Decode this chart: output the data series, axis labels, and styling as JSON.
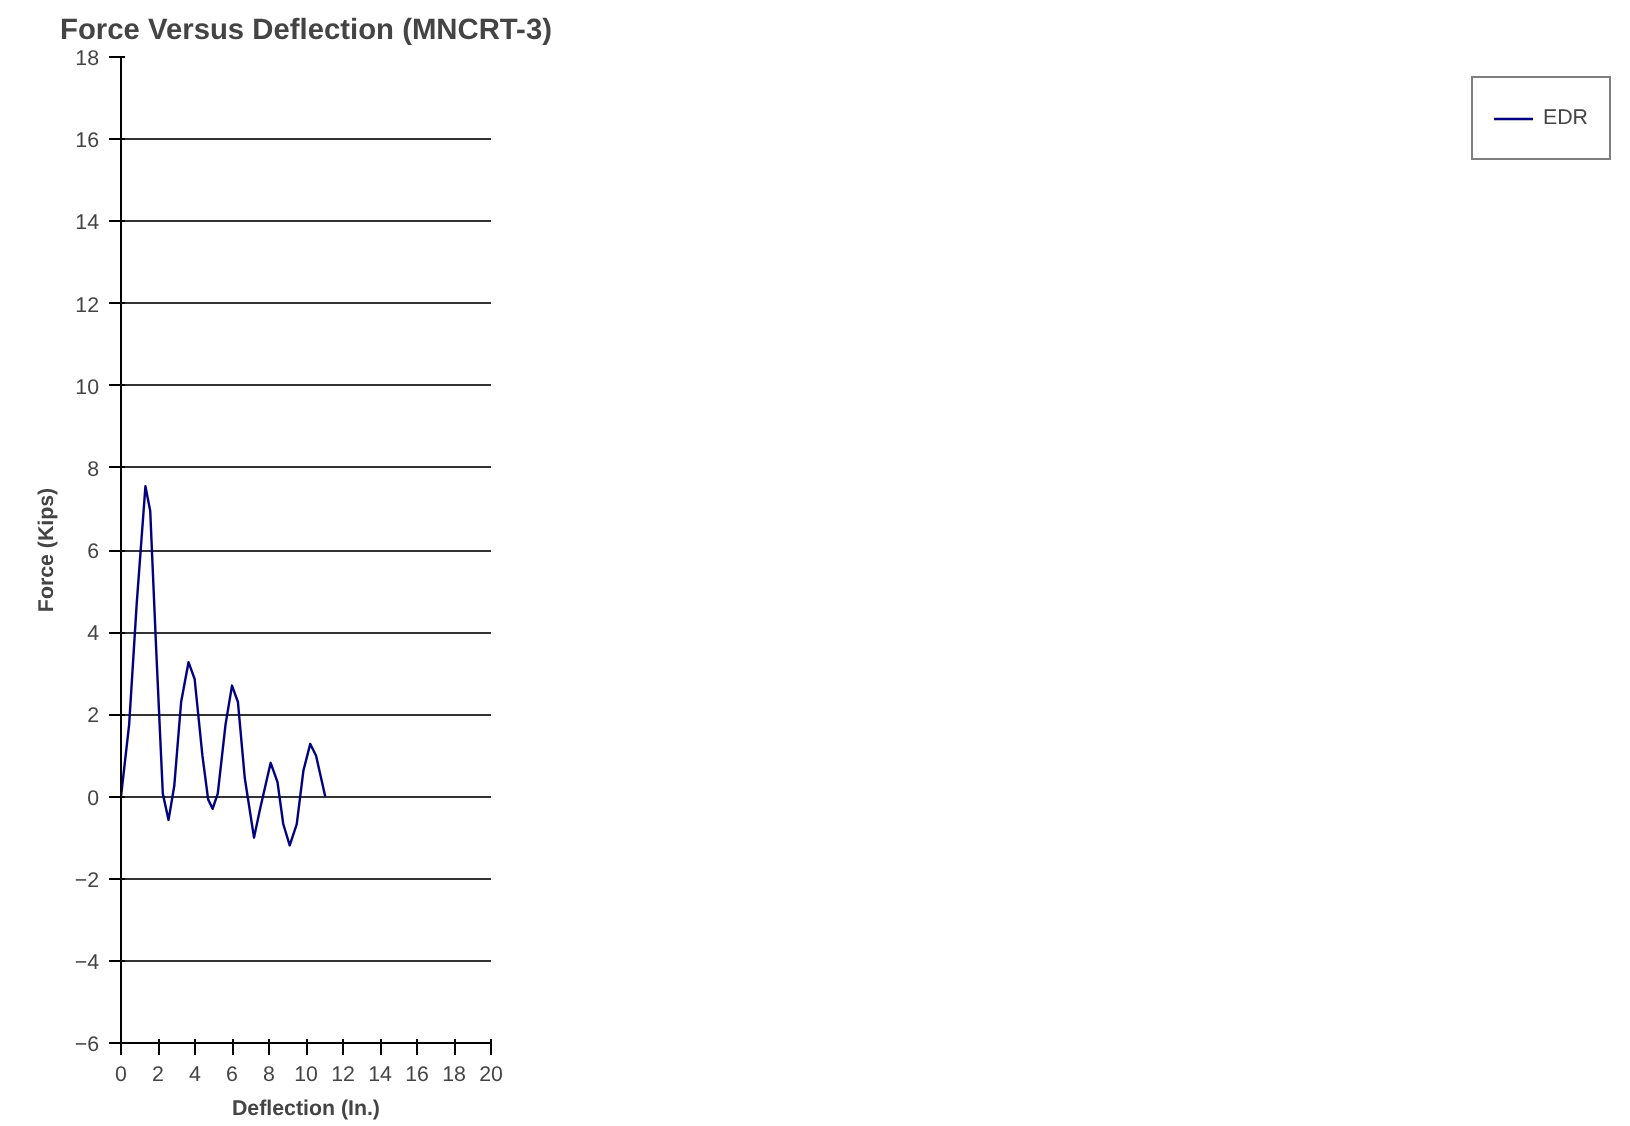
{
  "chart_data": {
    "type": "line",
    "title": "Force Versus Deflection (MNCRT-3)",
    "xlabel": "Deflection (In.)",
    "ylabel": "Force (Kips)",
    "xlim": [
      0,
      20
    ],
    "xticks": [
      0,
      2,
      4,
      6,
      8,
      10,
      12,
      14,
      16,
      18,
      20
    ],
    "ylim": [
      -6,
      18
    ],
    "yticks": [
      -6,
      -4,
      -2,
      0,
      2,
      4,
      6,
      8,
      10,
      12,
      14,
      16,
      18
    ],
    "grid": "y",
    "legend": "right",
    "marker": "none",
    "line_style": "solid",
    "series": [
      {
        "name": "EDR",
        "color": "#000080",
        "x": [
          0,
          0.44,
          0.85,
          1.32,
          1.58,
          1.9,
          2.26,
          2.57,
          2.88,
          3.25,
          3.65,
          3.98,
          4.4,
          4.71,
          4.95,
          5.23,
          5.65,
          6.0,
          6.32,
          6.69,
          7.19,
          7.52,
          8.09,
          8.46,
          8.77,
          9.12,
          9.5,
          9.86,
          10.23,
          10.54,
          11.04
        ],
        "values": [
          0,
          1.75,
          4.7,
          7.55,
          6.95,
          3.6,
          0.07,
          -0.57,
          0.26,
          2.3,
          3.27,
          2.86,
          1.0,
          -0.07,
          -0.3,
          0.07,
          1.75,
          2.7,
          2.3,
          0.45,
          -1.0,
          -0.3,
          0.82,
          0.35,
          -0.67,
          -1.19,
          -0.67,
          0.63,
          1.28,
          1.0,
          0
        ]
      }
    ]
  }
}
